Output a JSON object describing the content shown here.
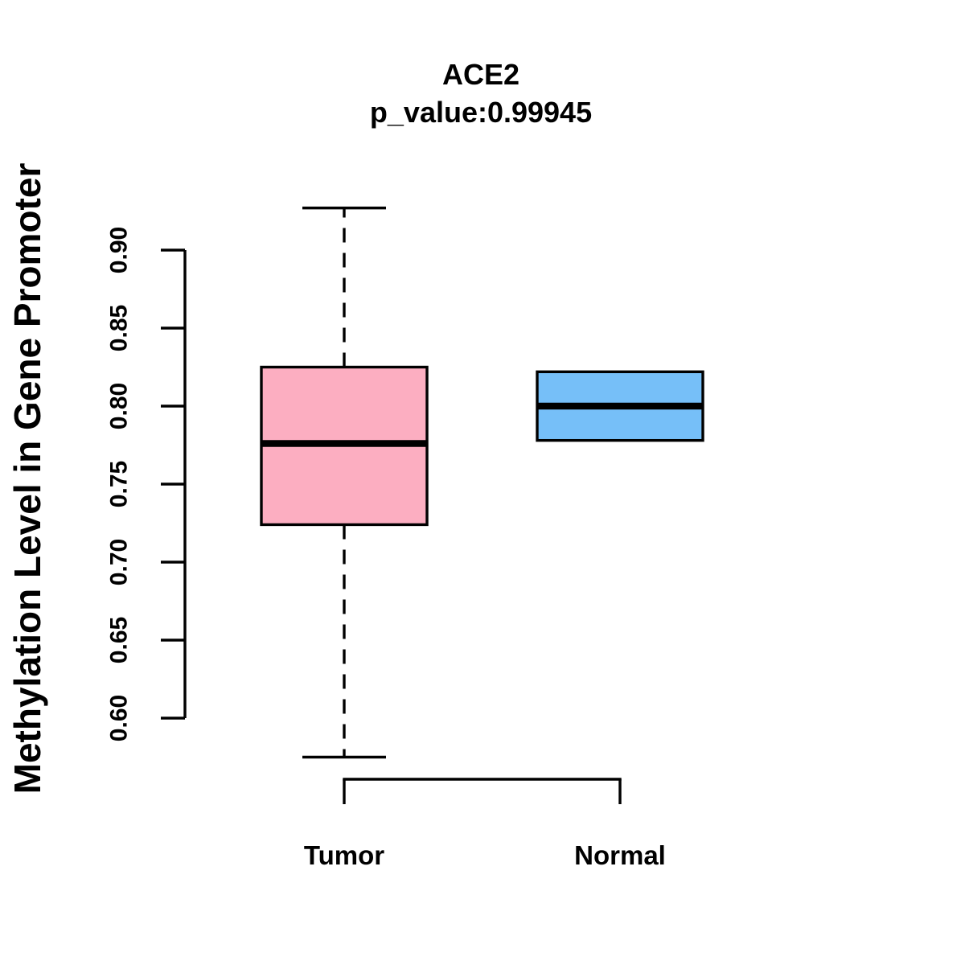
{
  "chart_data": {
    "type": "boxplot",
    "title": "ACE2",
    "subtitle": "p_value:0.99945",
    "ylabel": "Methylation Level in Gene Promoter",
    "xlabel": "",
    "categories": [
      "Tumor",
      "Normal"
    ],
    "yticks": [
      0.6,
      0.65,
      0.7,
      0.75,
      0.8,
      0.85,
      0.9
    ],
    "ylim": [
      0.575,
      0.9275
    ],
    "grid": false,
    "legend": false,
    "series": [
      {
        "name": "Tumor",
        "color": "#FCAEC1",
        "whisker_low": 0.575,
        "q1": 0.724,
        "median": 0.776,
        "q3": 0.825,
        "whisker_high": 0.927,
        "outliers": []
      },
      {
        "name": "Normal",
        "color": "#76BFF8",
        "whisker_low": 0.778,
        "q1": 0.778,
        "median": 0.8,
        "q3": 0.822,
        "whisker_high": 0.822,
        "outliers": []
      }
    ],
    "line_color": "#000000",
    "background_color": "#FFFFFF"
  }
}
